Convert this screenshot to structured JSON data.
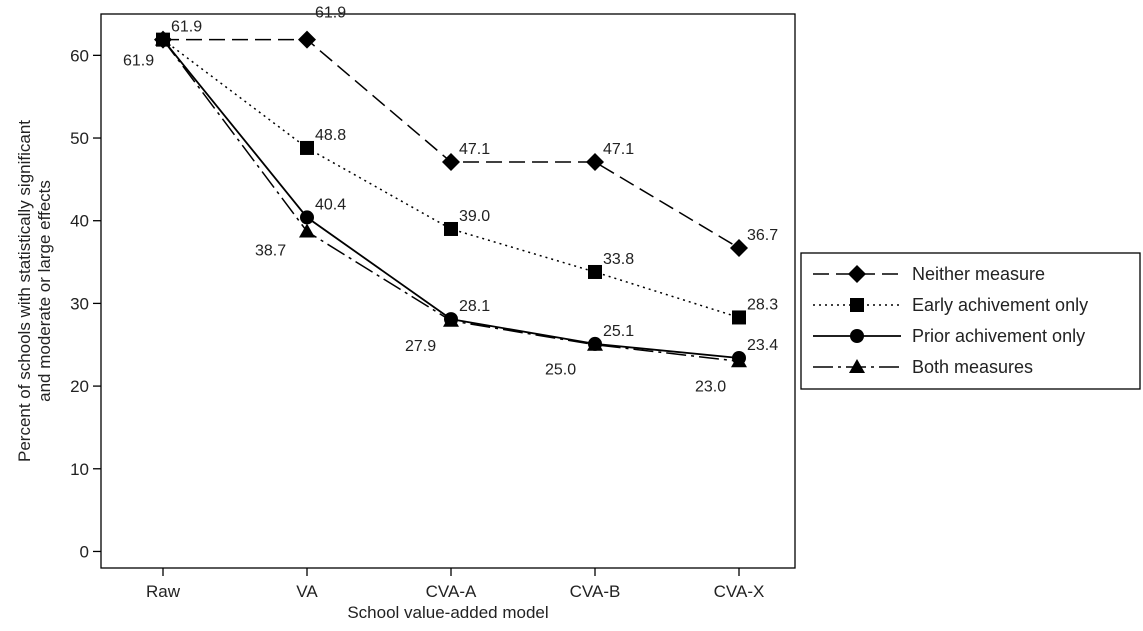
{
  "chart_data": {
    "type": "line",
    "title": "",
    "xlabel": "School value-added model",
    "ylabel_lines": [
      "Percent of schools with statistically significant",
      "and moderate or large effects"
    ],
    "categories": [
      "Raw",
      "VA",
      "CVA-A",
      "CVA-B",
      "CVA-X"
    ],
    "ylim": [
      -2,
      65
    ],
    "yticks": [
      0,
      10,
      20,
      30,
      40,
      50,
      60
    ],
    "grid": false,
    "legend_position": "right",
    "series": [
      {
        "name": "Neither measure",
        "values": [
          61.9,
          61.9,
          47.1,
          47.1,
          36.7
        ],
        "marker": "diamond",
        "line_style": "dashed",
        "labels": [
          "61.9",
          "61.9",
          "47.1",
          "47.1",
          "36.7"
        ]
      },
      {
        "name": "Early achivement only",
        "values": [
          61.9,
          48.8,
          39.0,
          33.8,
          28.3
        ],
        "marker": "square",
        "line_style": "dotted",
        "labels": [
          "61.9",
          "48.8",
          "39.0",
          "33.8",
          "28.3"
        ]
      },
      {
        "name": "Prior achivement only",
        "values": [
          61.9,
          40.4,
          28.1,
          25.1,
          23.4
        ],
        "marker": "circle",
        "line_style": "solid",
        "labels": [
          "61.9",
          "40.4",
          "28.1",
          "25.1",
          "23.4"
        ]
      },
      {
        "name": "Both measures",
        "values": [
          61.9,
          38.7,
          27.9,
          25.0,
          23.0
        ],
        "marker": "triangle",
        "line_style": "dash-dot",
        "labels": [
          "61.9",
          "38.7",
          "27.9",
          "25.0",
          "23.0"
        ]
      }
    ],
    "colors": {
      "line": "#000000",
      "text": "#222222",
      "background": "#ffffff"
    }
  }
}
